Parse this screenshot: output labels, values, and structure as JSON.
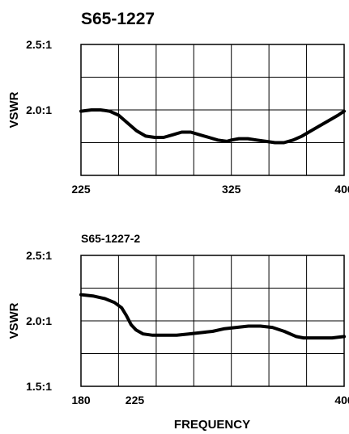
{
  "figure": {
    "xlabel_shared": "FREQUENCY"
  },
  "chart_data": [
    {
      "type": "line",
      "title": "S65-1227",
      "ylabel": "VSWR",
      "xlim": [
        225,
        400
      ],
      "ylim": [
        1.5,
        2.5
      ],
      "x_gridlines": [
        225,
        250,
        275,
        300,
        325,
        350,
        375,
        400
      ],
      "y_gridlines": [
        1.5,
        1.75,
        2.0,
        2.25,
        2.5
      ],
      "x_ticks": [
        {
          "value": 225,
          "label": "225"
        },
        {
          "value": 325,
          "label": "325"
        },
        {
          "value": 400,
          "label": "400"
        }
      ],
      "y_ticks": [
        {
          "value": 2.5,
          "label": "2.5:1"
        },
        {
          "value": 2.0,
          "label": "2.0:1"
        }
      ],
      "grid": true,
      "series": [
        {
          "x": [
            225,
            232,
            238,
            244,
            250,
            256,
            262,
            268,
            274,
            280,
            286,
            292,
            298,
            304,
            310,
            316,
            322,
            325,
            330,
            336,
            342,
            348,
            354,
            360,
            366,
            372,
            378,
            384,
            390,
            396,
            400
          ],
          "values": [
            1.99,
            2.0,
            2.0,
            1.99,
            1.96,
            1.9,
            1.84,
            1.8,
            1.79,
            1.79,
            1.81,
            1.83,
            1.83,
            1.81,
            1.79,
            1.77,
            1.76,
            1.77,
            1.78,
            1.78,
            1.77,
            1.76,
            1.75,
            1.75,
            1.77,
            1.8,
            1.84,
            1.88,
            1.92,
            1.96,
            1.99
          ]
        }
      ]
    },
    {
      "type": "line",
      "title": "S65-1227-2",
      "ylabel": "VSWR",
      "xlim": [
        180,
        400
      ],
      "ylim": [
        1.5,
        2.5
      ],
      "x_gridlines": [
        180,
        211.4,
        242.9,
        274.3,
        305.7,
        337.1,
        368.6,
        400
      ],
      "y_gridlines": [
        1.5,
        1.75,
        2.0,
        2.25,
        2.5
      ],
      "x_ticks": [
        {
          "value": 180,
          "label": "180"
        },
        {
          "value": 225,
          "label": "225"
        },
        {
          "value": 400,
          "label": "400"
        }
      ],
      "y_ticks": [
        {
          "value": 2.5,
          "label": "2.5:1"
        },
        {
          "value": 2.0,
          "label": "2.0:1"
        },
        {
          "value": 1.5,
          "label": "1.5:1"
        }
      ],
      "grid": true,
      "series": [
        {
          "x": [
            180,
            190,
            200,
            208,
            214,
            218,
            222,
            226,
            232,
            240,
            250,
            260,
            270,
            280,
            290,
            300,
            310,
            320,
            330,
            340,
            350,
            360,
            366,
            372,
            380,
            390,
            400
          ],
          "values": [
            2.2,
            2.19,
            2.17,
            2.14,
            2.1,
            2.04,
            1.97,
            1.93,
            1.9,
            1.89,
            1.89,
            1.89,
            1.9,
            1.91,
            1.92,
            1.94,
            1.95,
            1.96,
            1.96,
            1.95,
            1.92,
            1.88,
            1.87,
            1.87,
            1.87,
            1.87,
            1.88
          ]
        }
      ]
    }
  ]
}
